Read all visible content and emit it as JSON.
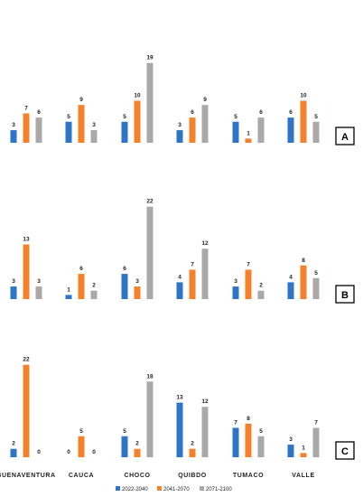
{
  "chart_data": [
    {
      "type": "bar",
      "panel_label": "A",
      "categories": [
        "BUENAVENTURA",
        "CAUCA",
        "CHOCO",
        "QUIBDO",
        "TUMACO",
        "VALLE"
      ],
      "series": [
        {
          "name": "2022-2040",
          "color": "#2E75C8",
          "values": [
            3,
            5,
            5,
            3,
            5,
            6
          ]
        },
        {
          "name": "2041-2070",
          "color": "#F5822A",
          "values": [
            7,
            9,
            10,
            6,
            1,
            10
          ]
        },
        {
          "name": "2071-2100",
          "color": "#A9A9A9",
          "values": [
            6,
            3,
            19,
            9,
            6,
            5
          ]
        }
      ]
    },
    {
      "type": "bar",
      "panel_label": "B",
      "categories": [
        "BUENAVENTURA",
        "CAUCA",
        "CHOCO",
        "QUIBDO",
        "TUMACO",
        "VALLE"
      ],
      "series": [
        {
          "name": "2022-2040",
          "color": "#2E75C8",
          "values": [
            3,
            1,
            6,
            4,
            3,
            4
          ]
        },
        {
          "name": "2041-2070",
          "color": "#F5822A",
          "values": [
            13,
            6,
            3,
            7,
            7,
            8
          ]
        },
        {
          "name": "2071-2100",
          "color": "#A9A9A9",
          "values": [
            3,
            2,
            22,
            12,
            2,
            5
          ]
        }
      ]
    },
    {
      "type": "bar",
      "panel_label": "C",
      "categories": [
        "BUENAVENTURA",
        "CAUCA",
        "CHOCO",
        "QUIBDO",
        "TUMACO",
        "VALLE"
      ],
      "series": [
        {
          "name": "2022-2040",
          "color": "#2E75C8",
          "values": [
            2,
            0,
            5,
            13,
            7,
            3
          ]
        },
        {
          "name": "2041-2070",
          "color": "#F5822A",
          "values": [
            22,
            5,
            2,
            2,
            8,
            1
          ]
        },
        {
          "name": "2071-2100",
          "color": "#A9A9A9",
          "values": [
            0,
            0,
            18,
            12,
            5,
            7
          ]
        }
      ]
    }
  ],
  "category_labels": [
    "BUENAVENTURA",
    "CAUCA",
    "CHOCO",
    "QUIBDO",
    "TUMACO",
    "VALLE"
  ],
  "legend": [
    {
      "name": "2022-2040",
      "color": "#2E75C8"
    },
    {
      "name": "2041-2070",
      "color": "#F5822A"
    },
    {
      "name": "2071-2100",
      "color": "#A9A9A9"
    }
  ]
}
